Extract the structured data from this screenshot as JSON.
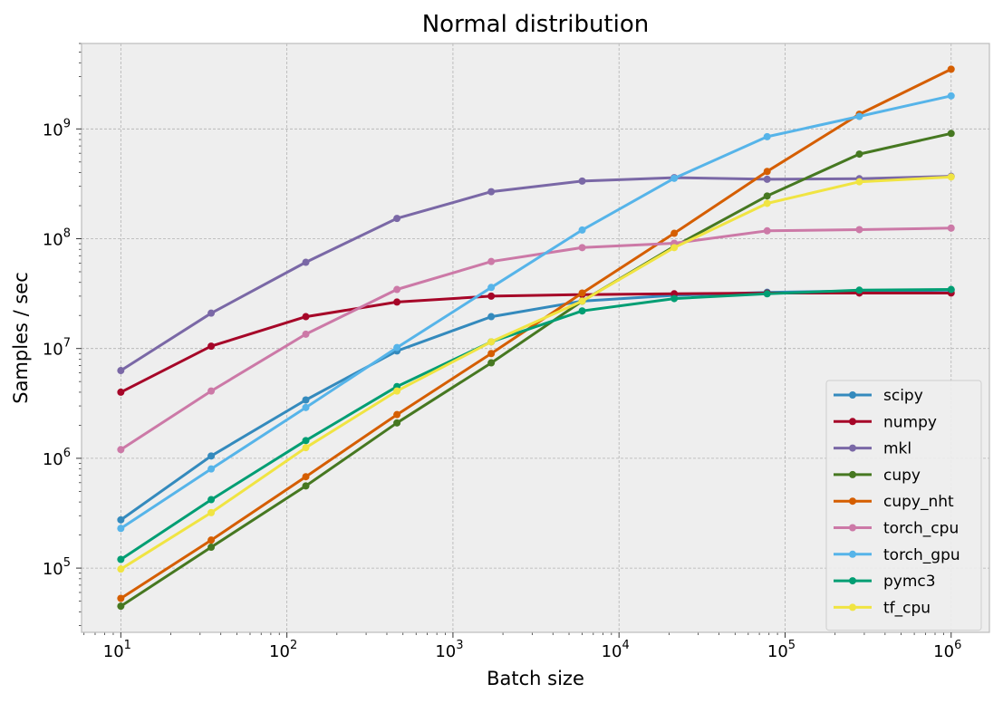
{
  "chart_data": {
    "type": "line",
    "title": "Normal distribution",
    "xlabel": "Batch size",
    "ylabel": "Samples / sec",
    "xscale": "log",
    "yscale": "log",
    "xlim": [
      5.8,
      1700000
    ],
    "ylim": [
      26000,
      6000000000
    ],
    "grid": true,
    "legend_position": "lower right",
    "background": "#eeeeee",
    "x_ticks": [
      {
        "value": 10,
        "base": "10",
        "exp": "1"
      },
      {
        "value": 100,
        "base": "10",
        "exp": "2"
      },
      {
        "value": 1000,
        "base": "10",
        "exp": "3"
      },
      {
        "value": 10000,
        "base": "10",
        "exp": "4"
      },
      {
        "value": 100000,
        "base": "10",
        "exp": "5"
      },
      {
        "value": 1000000,
        "base": "10",
        "exp": "6"
      }
    ],
    "y_ticks": [
      {
        "value": 100000,
        "base": "10",
        "exp": "5"
      },
      {
        "value": 1000000,
        "base": "10",
        "exp": "6"
      },
      {
        "value": 10000000,
        "base": "10",
        "exp": "7"
      },
      {
        "value": 100000000,
        "base": "10",
        "exp": "8"
      },
      {
        "value": 1000000000,
        "base": "10",
        "exp": "9"
      }
    ],
    "x": [
      10,
      35,
      130,
      460,
      1700,
      6000,
      21500,
      78000,
      280000,
      1000000
    ],
    "series": [
      {
        "name": "scipy",
        "color": "#348abd",
        "values": [
          275000,
          1050000,
          3400000,
          9500000,
          19500000,
          27000000,
          30500000,
          32500000,
          33500000,
          34000000
        ]
      },
      {
        "name": "numpy",
        "color": "#a60628",
        "values": [
          4000000,
          10500000,
          19500000,
          26500000,
          30000000,
          31000000,
          31500000,
          32000000,
          32000000,
          32000000
        ]
      },
      {
        "name": "mkl",
        "color": "#7a68a6",
        "values": [
          6300000,
          21000000,
          61000000,
          153000000,
          268000000,
          335000000,
          360000000,
          348000000,
          352000000,
          370000000
        ]
      },
      {
        "name": "cupy",
        "color": "#467821",
        "values": [
          45000,
          155000,
          560000,
          2100000,
          7400000,
          27000000,
          85000000,
          245000000,
          590000000,
          910000000
        ]
      },
      {
        "name": "cupy_nht",
        "color": "#d55e00",
        "values": [
          53000,
          180000,
          680000,
          2500000,
          9000000,
          32000000,
          112000000,
          410000000,
          1360000000,
          3500000000
        ]
      },
      {
        "name": "torch_cpu",
        "color": "#cc79a7",
        "values": [
          1200000,
          4100000,
          13500000,
          34500000,
          62000000,
          83000000,
          91000000,
          118000000,
          121000000,
          125000000
        ]
      },
      {
        "name": "torch_gpu",
        "color": "#56b4e9",
        "values": [
          230000,
          800000,
          2900000,
          10200000,
          36000000,
          120000000,
          355000000,
          850000000,
          1300000000,
          2000000000
        ]
      },
      {
        "name": "pymc3",
        "color": "#009e73",
        "values": [
          120000,
          420000,
          1450000,
          4500000,
          11500000,
          22000000,
          28500000,
          31500000,
          34000000,
          34500000
        ]
      },
      {
        "name": "tf_cpu",
        "color": "#f0e442",
        "values": [
          98000,
          320000,
          1250000,
          4100000,
          11500000,
          27000000,
          83000000,
          210000000,
          330000000,
          365000000
        ]
      }
    ]
  }
}
